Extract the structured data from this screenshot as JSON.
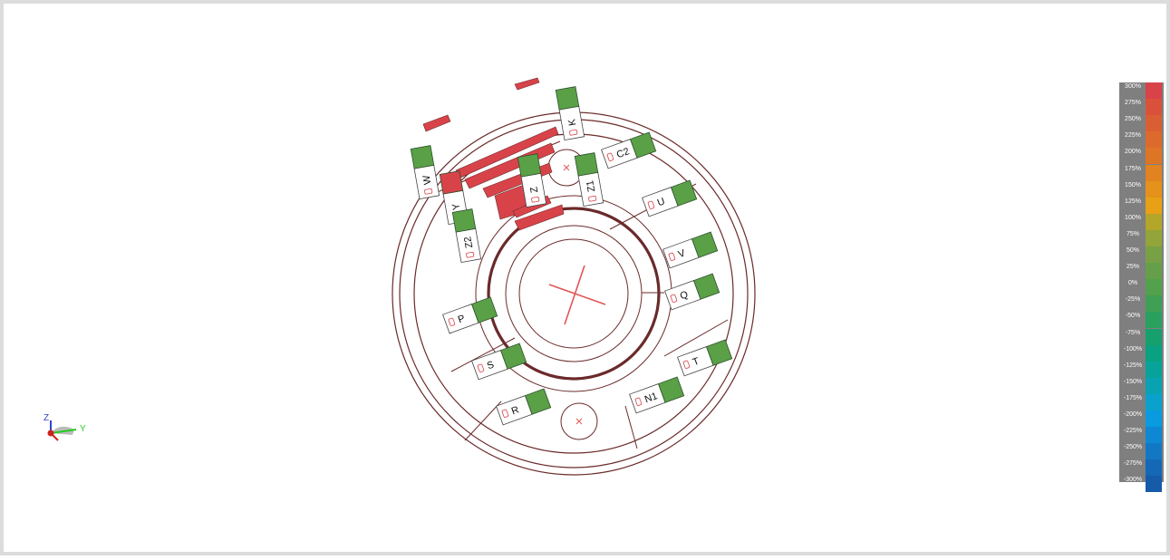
{
  "colors": {
    "line": "#6b2a2a",
    "green": "#5aa046",
    "red": "#d8434a",
    "marker": "#e25555"
  },
  "components": [
    {
      "id": "K",
      "label": "K"
    },
    {
      "id": "W",
      "label": "W"
    },
    {
      "id": "Z",
      "label": "Z"
    },
    {
      "id": "Z1",
      "label": "Z1"
    },
    {
      "id": "C2",
      "label": "C2"
    },
    {
      "id": "Y",
      "label": "Y"
    },
    {
      "id": "Z2",
      "label": "Z2"
    },
    {
      "id": "U",
      "label": "U"
    },
    {
      "id": "V",
      "label": "V"
    },
    {
      "id": "Q",
      "label": "Q"
    },
    {
      "id": "P",
      "label": "P"
    },
    {
      "id": "S",
      "label": "S"
    },
    {
      "id": "T",
      "label": "T"
    },
    {
      "id": "R",
      "label": "R"
    },
    {
      "id": "N1",
      "label": "N1"
    }
  ],
  "legend": {
    "labels": [
      "300%",
      "275%",
      "250%",
      "225%",
      "200%",
      "175%",
      "150%",
      "125%",
      "100%",
      "75%",
      "50%",
      "25%",
      "0%",
      "-25%",
      "-50%",
      "-75%",
      "-100%",
      "-125%",
      "-150%",
      "-175%",
      "-200%",
      "-225%",
      "-250%",
      "-275%",
      "-300%"
    ],
    "colors": [
      "#d8434a",
      "#d9513a",
      "#da5e33",
      "#dc6a2c",
      "#de7525",
      "#e08320",
      "#e4921b",
      "#e8a016",
      "#b3a62a",
      "#92a43a",
      "#77a144",
      "#659f49",
      "#53a14d",
      "#3f9f55",
      "#2aa05f",
      "#16a06d",
      "#0aa182",
      "#07a39a",
      "#08a2b3",
      "#0aa1cc",
      "#0a9ae0",
      "#0e88d2",
      "#1278c3",
      "#1468b6",
      "#165aaa"
    ]
  },
  "axes": {
    "z": "Z",
    "y": "Y"
  }
}
